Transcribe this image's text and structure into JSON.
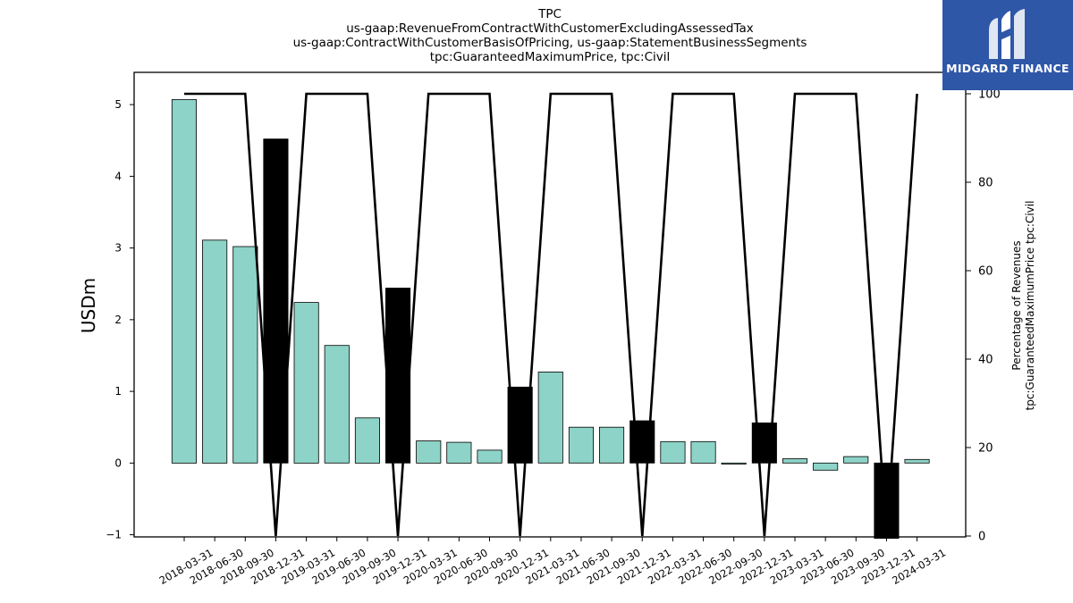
{
  "brand": {
    "name": "MIDGARD FINANCE",
    "color": "#2f57a8",
    "icon": "midgard-logo-icon"
  },
  "chart_data": {
    "type": "bar",
    "title_lines": [
      "TPC",
      "us-gaap:RevenueFromContractWithCustomerExcludingAssessedTax",
      "us-gaap:ContractWithCustomerBasisOfPricing, us-gaap:StatementBusinessSegments",
      "tpc:GuaranteedMaximumPrice, tpc:Civil"
    ],
    "ylabel": "USDm",
    "y2label_lines": [
      "Percentage of Revenues",
      "tpc:GuaranteedMaximumPrice tpc:Civil"
    ],
    "categories": [
      "2018-03-31",
      "2018-06-30",
      "2018-09-30",
      "2018-12-31",
      "2019-03-31",
      "2019-06-30",
      "2019-09-30",
      "2019-12-31",
      "2020-03-31",
      "2020-06-30",
      "2020-09-30",
      "2020-12-31",
      "2021-03-31",
      "2021-06-30",
      "2021-09-30",
      "2021-12-31",
      "2022-03-31",
      "2022-06-30",
      "2022-09-30",
      "2022-12-31",
      "2023-03-31",
      "2023-06-30",
      "2023-09-30",
      "2023-12-31",
      "2024-03-31"
    ],
    "values": [
      5.07,
      3.11,
      3.02,
      4.52,
      2.24,
      1.64,
      0.63,
      2.44,
      0.31,
      0.29,
      0.18,
      1.06,
      1.27,
      0.5,
      0.5,
      0.59,
      0.3,
      0.3,
      -0.01,
      0.56,
      0.06,
      -0.1,
      0.09,
      -1.05,
      0.05
    ],
    "annual_flags": [
      false,
      false,
      false,
      true,
      false,
      false,
      false,
      true,
      false,
      false,
      false,
      true,
      false,
      false,
      false,
      true,
      false,
      false,
      false,
      true,
      false,
      false,
      false,
      true,
      false
    ],
    "percentage": [
      100,
      100,
      100,
      0,
      100,
      100,
      100,
      0,
      100,
      100,
      100,
      0,
      100,
      100,
      100,
      0,
      100,
      100,
      100,
      0,
      100,
      100,
      100,
      0,
      100
    ],
    "ylim": [
      -1.03,
      5.45
    ],
    "y2lim": [
      0,
      100
    ],
    "yticks": [
      -1,
      0,
      1,
      2,
      3,
      4,
      5
    ],
    "y2ticks": [
      0,
      20,
      40,
      60,
      80,
      100
    ],
    "bar_color": "#8dd3c7",
    "annual_bar_color": "#000000",
    "line_color": "#000000",
    "grid": false
  }
}
